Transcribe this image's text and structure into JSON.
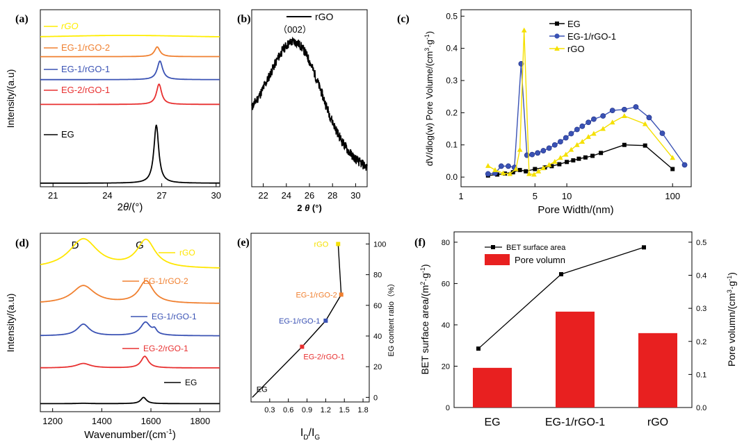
{
  "figure": {
    "panel_labels": [
      "(a)",
      "(b)",
      "(c)",
      "(d)",
      "(e)",
      "(f)"
    ]
  },
  "chart_data": [
    {
      "id": "a",
      "type": "line",
      "title": "",
      "xlabel": "2θ/(°)",
      "xlabel_prefix": "2",
      "xlabel_var": "θ",
      "xlabel_suffix": "/(°)",
      "ylabel": "Intensity/(a.u)",
      "xlim": [
        20.3,
        30.2
      ],
      "ylim": [
        0,
        10
      ],
      "xticks": [
        21,
        24,
        27,
        30
      ],
      "xtick_labels": [
        "21",
        "24",
        "27",
        "30"
      ],
      "series": [
        {
          "name": "rGO",
          "label": "rGO",
          "italic": true,
          "color": "#ffee00",
          "offset": 8.45,
          "peak_center": 25.0,
          "peak_width": 3.0,
          "peak_height": 0.1,
          "sharp_height": 0
        },
        {
          "name": "EG-1/rGO-2",
          "label": "EG-1/rGO-2",
          "color": "#f08030",
          "offset": 7.35,
          "peak_center": 26.75,
          "peak_width": 0.18,
          "peak_height": 0.55,
          "sharp_height": 0
        },
        {
          "name": "EG-1/rGO-1",
          "label": "EG-1/rGO-1",
          "color": "#3a52b4",
          "offset": 6.05,
          "peak_center": 26.9,
          "peak_width": 0.18,
          "peak_height": 1.05,
          "sharp_height": 0
        },
        {
          "name": "EG-2/rGO-1",
          "label": "EG-2/rGO-1",
          "color": "#e83030",
          "offset": 4.65,
          "peak_center": 26.85,
          "peak_width": 0.17,
          "peak_height": 1.15,
          "sharp_height": 0
        },
        {
          "name": "EG",
          "label": "EG",
          "color": "#000000",
          "offset": 0.2,
          "peak_center": 26.7,
          "peak_width": 0.16,
          "peak_height": 3.3,
          "sharp_height": 0
        }
      ]
    },
    {
      "id": "b",
      "type": "line",
      "xlabel": "2 θ (°)",
      "xlabel_prefix": "2 ",
      "xlabel_var": "θ",
      "xlabel_suffix": " (°)",
      "ylabel": "",
      "xlim": [
        21,
        31
      ],
      "ylim": [
        0,
        10
      ],
      "xticks": [
        22,
        24,
        26,
        28,
        30
      ],
      "xtick_labels": [
        "22",
        "24",
        "26",
        "28",
        "30"
      ],
      "annotation": "（002）",
      "series": [
        {
          "name": "rGO",
          "label": "rGO",
          "color": "#000000",
          "peak_center": 24.8,
          "peak_width": 2.2,
          "peak_height": 5.8,
          "baseline_start": 3.2,
          "baseline_end": 1.0
        }
      ]
    },
    {
      "id": "c",
      "type": "line",
      "xscale": "log",
      "xlabel": "Pore Width/(nm)",
      "ylabel": "dV/dlog(w) Pore Volume/(cm3·g-1)",
      "ylabel_main": "dV/dlog(w) Pore Volume/(cm",
      "ylabel_exp1": "3",
      "ylabel_mid": "·g",
      "ylabel_exp2": "-1",
      "ylabel_end": ")",
      "xlim": [
        1,
        150
      ],
      "ylim": [
        -0.03,
        0.52
      ],
      "xticks": [
        1,
        5,
        10,
        100
      ],
      "xtick_labels": [
        "1",
        "5",
        "10",
        "100"
      ],
      "yticks": [
        0.0,
        0.1,
        0.2,
        0.3,
        0.4,
        0.5
      ],
      "ytick_labels": [
        "0.0",
        "0.1",
        "0.2",
        "0.3",
        "0.4",
        "0.5"
      ],
      "series": [
        {
          "name": "EG",
          "label": "EG",
          "color": "#000000",
          "marker": "square",
          "x": [
            1.8,
            2.0,
            2.2,
            2.5,
            2.8,
            3.1,
            3.4,
            3.6,
            3.8,
            4.0,
            4.5,
            5.0,
            5.5,
            6.2,
            7.0,
            8.0,
            9.0,
            10.0,
            11.0,
            12.5,
            14.0,
            16.0,
            18.0,
            21.0,
            35.0,
            55.0,
            100.0
          ],
          "y": [
            0.005,
            0.007,
            0.008,
            0.01,
            0.012,
            0.015,
            0.018,
            0.024,
            0.02,
            0.018,
            0.02,
            0.024,
            0.027,
            0.03,
            0.033,
            0.037,
            0.042,
            0.047,
            0.05,
            0.055,
            0.06,
            0.063,
            0.068,
            0.075,
            0.1,
            0.098,
            0.025
          ],
          "mark_x": [
            1.8,
            2.2,
            2.6,
            3.1,
            3.6,
            4.1,
            5.0,
            6.2,
            7.2,
            8.5,
            10,
            11.5,
            13,
            15,
            17.5,
            21,
            35,
            55,
            100
          ],
          "mark_y": [
            0.005,
            0.008,
            0.011,
            0.015,
            0.022,
            0.018,
            0.025,
            0.03,
            0.034,
            0.04,
            0.047,
            0.052,
            0.057,
            0.061,
            0.066,
            0.075,
            0.1,
            0.098,
            0.025
          ]
        },
        {
          "name": "EG-1/rGO-1",
          "label": "EG-1/rGO-1",
          "color": "#3a52b4",
          "marker": "circle",
          "mark_x": [
            1.8,
            2.1,
            2.4,
            2.8,
            3.2,
            3.7,
            4.2,
            4.7,
            5.3,
            6.0,
            6.8,
            7.7,
            8.7,
            9.8,
            11,
            12.5,
            14,
            16,
            18,
            22,
            27,
            35,
            45,
            60,
            80,
            130
          ],
          "mark_y": [
            0.01,
            0.012,
            0.034,
            0.034,
            0.03,
            0.352,
            0.068,
            0.07,
            0.075,
            0.082,
            0.09,
            0.1,
            0.11,
            0.122,
            0.135,
            0.148,
            0.158,
            0.17,
            0.18,
            0.19,
            0.207,
            0.21,
            0.218,
            0.185,
            0.136,
            0.038
          ]
        },
        {
          "name": "rGO",
          "label": "rGO",
          "color": "#f5e000",
          "marker": "triangle",
          "mark_x": [
            1.8,
            2.1,
            2.5,
            2.9,
            3.3,
            3.6,
            3.95,
            4.4,
            4.9,
            5.4,
            6.0,
            6.8,
            7.7,
            8.7,
            9.8,
            11,
            12.5,
            14,
            16,
            18,
            22,
            27,
            35,
            55,
            100
          ],
          "mark_y": [
            0.035,
            0.022,
            0.012,
            0.01,
            0.025,
            0.085,
            0.456,
            0.01,
            0.008,
            0.018,
            0.028,
            0.038,
            0.048,
            0.06,
            0.07,
            0.085,
            0.1,
            0.11,
            0.125,
            0.135,
            0.15,
            0.17,
            0.19,
            0.165,
            0.06
          ]
        }
      ]
    },
    {
      "id": "d",
      "type": "line",
      "xlabel": "Wavenumber/(cm-1)",
      "xlabel_main": "Wavenumber/(cm",
      "xlabel_exp": "-1",
      "xlabel_end": ")",
      "ylabel": "Intensity/(a.u)",
      "xlim": [
        1150,
        1880
      ],
      "ylim": [
        0,
        10
      ],
      "xticks": [
        1200,
        1400,
        1600,
        1800
      ],
      "xtick_labels": [
        "1200",
        "1400",
        "1600",
        "1800"
      ],
      "peak_labels": [
        "D",
        "G"
      ],
      "series": [
        {
          "name": "rGO",
          "label": "rGO",
          "color": "#ffe600",
          "offset": 8.0,
          "d_height": 1.65,
          "g_height": 1.55,
          "g_center": 1580,
          "d_width": 70,
          "g_width": 45
        },
        {
          "name": "EG-1/rGO-2",
          "label": "EG-1/rGO-2",
          "color": "#f08030",
          "offset": 6.05,
          "d_height": 1.0,
          "g_height": 1.25,
          "g_center": 1580,
          "d_width": 55,
          "g_width": 35
        },
        {
          "name": "EG-1/rGO-1",
          "label": "EG-1/rGO-1",
          "color": "#3a52b4",
          "offset": 4.25,
          "d_height": 0.65,
          "g_height": 0.75,
          "g_center": 1578,
          "d_width": 30,
          "g_width": 25
        },
        {
          "name": "EG-2/rGO-1",
          "label": "EG-2/rGO-1",
          "color": "#e83030",
          "offset": 2.45,
          "d_height": 0.25,
          "g_height": 0.65,
          "g_center": 1575,
          "d_width": 35,
          "g_width": 18
        },
        {
          "name": "EG",
          "label": "EG",
          "color": "#000000",
          "offset": 0.45,
          "d_height": 0.02,
          "g_height": 0.35,
          "g_center": 1570,
          "d_width": 30,
          "g_width": 14
        }
      ]
    },
    {
      "id": "e",
      "type": "line",
      "xlabel": "ID/IG",
      "xlabel_i1": "I",
      "xlabel_s1": "D",
      "xlabel_slash": "/I",
      "xlabel_s2": "G",
      "ylabel": "EG content ratio（%）",
      "xlim": [
        0,
        1.9
      ],
      "ylim": [
        -3,
        107
      ],
      "xticks": [
        0.3,
        0.6,
        0.9,
        1.2,
        1.5,
        1.8
      ],
      "xtick_labels": [
        "0.3",
        "0.6",
        "0.9",
        "1.2",
        "1.5",
        "1.8"
      ],
      "yticks": [
        0,
        20,
        40,
        60,
        80,
        100
      ],
      "ytick_labels": [
        "0",
        "20",
        "40",
        "60",
        "80",
        "100"
      ],
      "points": [
        {
          "label": "EG",
          "x": 0.02,
          "y": 0,
          "color": "#000000"
        },
        {
          "label": "EG-2/rGO-1",
          "x": 0.82,
          "y": 33,
          "color": "#e83030"
        },
        {
          "label": "EG-1/rGO-1",
          "x": 1.2,
          "y": 50,
          "color": "#3a52b4"
        },
        {
          "label": "EG-1/rGO-2",
          "x": 1.45,
          "y": 67,
          "color": "#f08030"
        },
        {
          "label": "rGO",
          "x": 1.4,
          "y": 100,
          "color": "#f5e000"
        }
      ]
    },
    {
      "id": "f",
      "type": "bar",
      "categories": [
        "EG",
        "EG-1/rGO-1",
        "rGO"
      ],
      "bar_series": {
        "name": "Pore volumn",
        "label": "Pore volumn",
        "color": "#e82020",
        "values": [
          0.12,
          0.29,
          0.225
        ]
      },
      "line_series": {
        "name": "BET surface area",
        "label": "BET surface area",
        "color": "#000000",
        "values": [
          28.5,
          64.5,
          77.5
        ]
      },
      "ylabel_left": "BET surface area/(m2·g-1)",
      "ylabel_left_main": "BET surface area/(m",
      "ylabel_left_exp1": "2",
      "ylabel_left_mid": "·g",
      "ylabel_left_exp2": "-1",
      "ylabel_left_end": ")",
      "ylabel_right": "Pore volumn/(cm3·g-1)",
      "ylabel_right_main": "Pore volumn/(cm",
      "ylabel_right_exp1": "3",
      "ylabel_right_mid": "·g",
      "ylabel_right_exp2": "-1",
      "ylabel_right_end": ")",
      "ylim_left": [
        0,
        85
      ],
      "ylim_right": [
        0,
        0.53125
      ],
      "yticks_left": [
        0,
        20,
        40,
        60,
        80
      ],
      "yticks_left_labels": [
        "0",
        "20",
        "40",
        "60",
        "80"
      ],
      "yticks_right": [
        0.0,
        0.1,
        0.2,
        0.3,
        0.4,
        0.5
      ],
      "yticks_right_labels": [
        "0.0",
        "0.1",
        "0.2",
        "0.3",
        "0.4",
        "0.5"
      ]
    }
  ]
}
